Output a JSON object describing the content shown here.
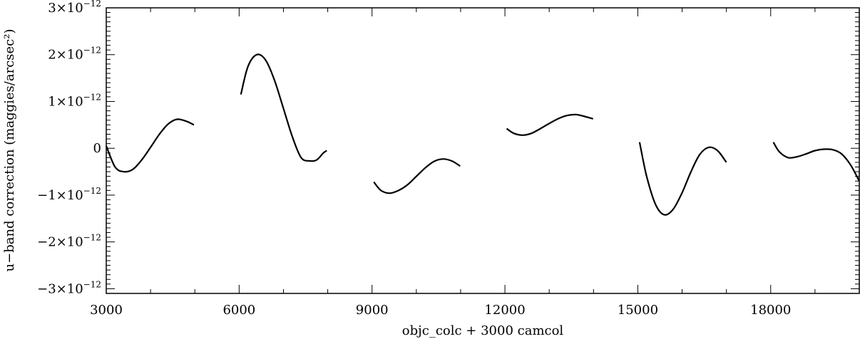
{
  "chart_data": {
    "type": "line",
    "title": "",
    "xlabel": "objc_colc + 3000 camcol",
    "ylabel": "u−band correction (maggies/arcsec²)",
    "xlim": [
      3000,
      20000
    ],
    "ylim": [
      -3.1e-12,
      3e-12
    ],
    "grid": false,
    "x_ticks": [
      {
        "value": 3000,
        "label": "3000"
      },
      {
        "value": 6000,
        "label": "6000"
      },
      {
        "value": 9000,
        "label": "9000"
      },
      {
        "value": 12000,
        "label": "12000"
      },
      {
        "value": 15000,
        "label": "15000"
      },
      {
        "value": 18000,
        "label": "18000"
      }
    ],
    "y_ticks": [
      {
        "value": 3e-12,
        "mant": "3×10",
        "exp": "−12"
      },
      {
        "value": 2e-12,
        "mant": "2×10",
        "exp": "−12"
      },
      {
        "value": 1e-12,
        "mant": "1×10",
        "exp": "−12"
      },
      {
        "value": 0,
        "mant": "0",
        "exp": ""
      },
      {
        "value": -1e-12,
        "mant": "−1×10",
        "exp": "−12"
      },
      {
        "value": -2e-12,
        "mant": "−2×10",
        "exp": "−12"
      },
      {
        "value": -3e-12,
        "mant": "−3×10",
        "exp": "−12"
      }
    ],
    "series": [
      {
        "x": [
          3000,
          3200,
          3400,
          3600,
          3800,
          4000,
          4200,
          4400,
          4600,
          4800,
          4980
        ],
        "y": [
          5e-14,
          -4e-13,
          -5e-13,
          -4.5e-13,
          -2.5e-13,
          2e-14,
          3e-13,
          5.2e-13,
          6.2e-13,
          5.8e-13,
          5e-13
        ]
      },
      {
        "x": [
          6040,
          6200,
          6400,
          6600,
          6800,
          7000,
          7200,
          7400,
          7600,
          7750,
          7900,
          7980
        ],
        "y": [
          1.15e-12,
          1.75e-12,
          2e-12,
          1.88e-12,
          1.45e-12,
          8.5e-13,
          2.5e-13,
          -2e-13,
          -2.7e-13,
          -2.5e-13,
          -1e-13,
          -5e-14
        ]
      },
      {
        "x": [
          9040,
          9200,
          9400,
          9600,
          9800,
          10000,
          10200,
          10400,
          10600,
          10800,
          10990
        ],
        "y": [
          -7.2e-13,
          -9e-13,
          -9.6e-13,
          -9e-13,
          -7.8e-13,
          -6e-13,
          -4.2e-13,
          -2.8e-13,
          -2.3e-13,
          -2.7e-13,
          -3.8e-13
        ]
      },
      {
        "x": [
          12040,
          12200,
          12400,
          12600,
          12800,
          13000,
          13200,
          13400,
          13600,
          13800,
          13990
        ],
        "y": [
          4.2e-13,
          3.2e-13,
          2.8e-13,
          3.2e-13,
          4.2e-13,
          5.3e-13,
          6.3e-13,
          7e-13,
          7.2e-13,
          6.8e-13,
          6.3e-13
        ]
      },
      {
        "x": [
          15040,
          15200,
          15400,
          15600,
          15800,
          16000,
          16200,
          16400,
          16600,
          16800,
          17000
        ],
        "y": [
          1.3e-13,
          -6e-13,
          -1.2e-12,
          -1.42e-12,
          -1.3e-12,
          -9.5e-13,
          -5e-13,
          -1.3e-13,
          2e-14,
          -5e-14,
          -3e-13
        ]
      },
      {
        "x": [
          18060,
          18200,
          18400,
          18600,
          18800,
          19000,
          19200,
          19400,
          19600,
          19800,
          20000
        ],
        "y": [
          1.3e-13,
          -8e-14,
          -2e-13,
          -1.8e-13,
          -1.2e-13,
          -5e-14,
          -2e-14,
          -3e-14,
          -1.2e-13,
          -3.5e-13,
          -7e-13
        ]
      }
    ]
  }
}
